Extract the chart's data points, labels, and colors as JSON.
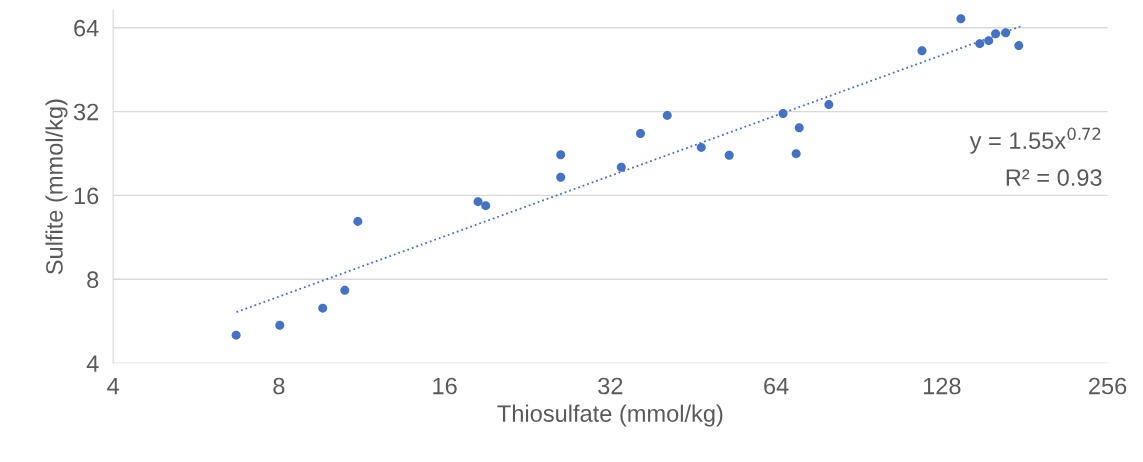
{
  "chart_data": {
    "type": "scatter",
    "xlabel": "Thiosulfate (mmol/kg)",
    "ylabel": "Sulfite (mmol/kg)",
    "log": "xy",
    "grid": "y",
    "marker": "circle",
    "legend": false,
    "xlim": [
      4,
      256
    ],
    "xticks": [
      4,
      8,
      16,
      32,
      64,
      128,
      256
    ],
    "ylim": [
      4,
      74
    ],
    "yticks": [
      4,
      8,
      16,
      32,
      64
    ],
    "annotations": [
      "y = 1.55x$^{0.72}$",
      "R² = 0.93"
    ],
    "series": [
      {
        "color": "#4472c4",
        "x": [
          6.69,
          8.03,
          9.61,
          10.54,
          11.13,
          18.4,
          19.0,
          26.0,
          26.0,
          33.5,
          36.3,
          40.6,
          46.8,
          52.6,
          65.9,
          69.6,
          70.5,
          79.8,
          117.8,
          138.6,
          150.0,
          155.7,
          160.3,
          167.2,
          176.6
        ],
        "values": [
          5.04,
          5.47,
          6.3,
          7.3,
          12.91,
          15.2,
          14.7,
          22.4,
          18.6,
          20.2,
          26.7,
          31.0,
          23.8,
          22.3,
          31.5,
          22.6,
          28.0,
          33.9,
          52.9,
          68.9,
          56.1,
          57.5,
          60.9,
          61.4,
          55.2
        ]
      },
      {
        "type": "line",
        "color": "#4472c4",
        "line_style": "dotted",
        "marker": "none",
        "x": [
          6.7,
          178
        ],
        "values": [
          6.1,
          64.7
        ]
      }
    ]
  }
}
